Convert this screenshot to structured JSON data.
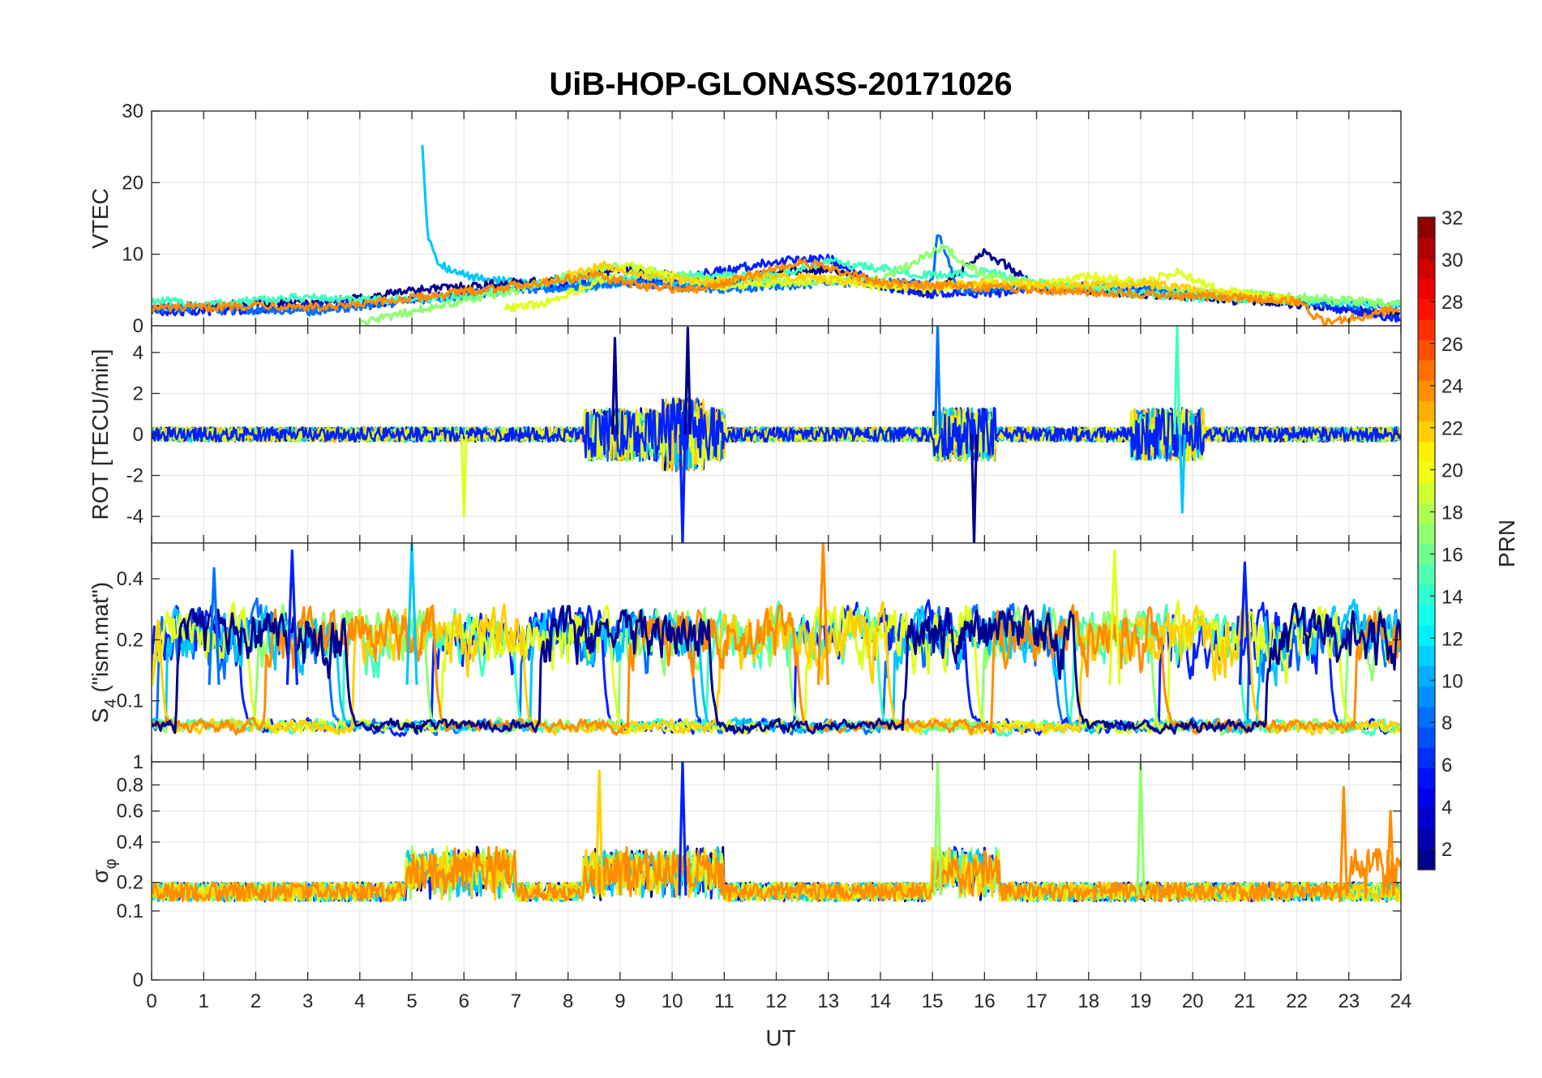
{
  "chart_data": {
    "type": "line",
    "title": "UiB-HOP-GLONASS-20171026",
    "xlabel": "UT",
    "xlim": [
      0,
      24
    ],
    "x_ticks": [
      "0",
      "1",
      "2",
      "3",
      "4",
      "5",
      "6",
      "7",
      "8",
      "9",
      "10",
      "11",
      "12",
      "13",
      "14",
      "15",
      "16",
      "17",
      "18",
      "19",
      "20",
      "21",
      "22",
      "23",
      "24"
    ],
    "grid": true,
    "colorbar": {
      "label": "PRN",
      "colormap": "jet",
      "range": [
        1,
        32
      ],
      "ticks": [
        "2",
        "4",
        "6",
        "8",
        "10",
        "12",
        "14",
        "16",
        "18",
        "20",
        "22",
        "24",
        "26",
        "28",
        "30",
        "32"
      ]
    },
    "series_colors": {
      "prn1": "#00008f",
      "prn3": "#0020ff",
      "prn6": "#0070ff",
      "prn10": "#00c8ff",
      "prn13": "#40ffbf",
      "prn16": "#8fff70",
      "prn19": "#e0ff20",
      "prn21": "#ffd000",
      "prn23": "#ff8c00"
    },
    "panels": [
      {
        "name": "vtec",
        "ylabel": "VTEC",
        "ylim": [
          0,
          30
        ],
        "y_ticks": [
          "0",
          "10",
          "20",
          "30"
        ],
        "series": [
          {
            "color_key": "prn10",
            "x": [
              5.2,
              5.3,
              5.5,
              5.8,
              6.2,
              6.8,
              7.5,
              8.0,
              8.5,
              9.0,
              9.6,
              10.2,
              10.8,
              11.4,
              12.0
            ],
            "y": [
              25.5,
              13,
              9,
              7.5,
              6.8,
              6.2,
              5.5,
              5.2,
              5.5,
              6,
              6.5,
              6,
              5.5,
              6,
              6.5
            ]
          },
          {
            "color_key": "prn1",
            "x": [
              0,
              1,
              2,
              3,
              4,
              5,
              6,
              7,
              8,
              9,
              10,
              11,
              12,
              13,
              14,
              15,
              16,
              17,
              18,
              19,
              20,
              21,
              22,
              23,
              24
            ],
            "y": [
              2.5,
              2.8,
              3,
              3.2,
              3.8,
              5,
              5.5,
              6,
              6.5,
              8,
              7,
              6,
              7.5,
              8,
              5.5,
              4.5,
              10.5,
              5.5,
              5,
              4.5,
              4,
              3.5,
              3,
              2.5,
              1.5
            ]
          },
          {
            "color_key": "prn3",
            "x": [
              0,
              2,
              4,
              6,
              8,
              10,
              12,
              13,
              14,
              15,
              16,
              17,
              18,
              19,
              20,
              21,
              22,
              23,
              24
            ],
            "y": [
              2,
              2.2,
              3,
              4.5,
              6,
              6.5,
              9,
              9.5,
              5.5,
              4.5,
              4.5,
              5,
              5.5,
              5,
              4.5,
              4,
              3.5,
              2,
              1
            ]
          },
          {
            "color_key": "prn6",
            "x": [
              0,
              3,
              5,
              7,
              9,
              11,
              13,
              15,
              15.1,
              15.5,
              17,
              19,
              21,
              23,
              24
            ],
            "y": [
              2.5,
              2,
              3.5,
              5,
              6,
              5,
              6,
              6,
              13,
              5,
              5.5,
              5,
              4,
              3,
              2.5
            ]
          },
          {
            "color_key": "prn13",
            "x": [
              0,
              1,
              2,
              3,
              4,
              6,
              8,
              10,
              12,
              13,
              14,
              15,
              16,
              17,
              18,
              20,
              22,
              24
            ],
            "y": [
              3.5,
              3,
              3.5,
              4,
              3.5,
              4,
              6.5,
              7,
              7,
              9,
              8,
              7,
              7.5,
              6,
              5,
              4,
              3.5,
              3
            ]
          },
          {
            "color_key": "prn16",
            "x": [
              4,
              5,
              6,
              7,
              8,
              9,
              10,
              12,
              14,
              15.2,
              16,
              17,
              18,
              19,
              20,
              22,
              24
            ],
            "y": [
              0.3,
              2,
              3.5,
              5,
              7,
              8.5,
              7,
              6,
              6.5,
              11,
              7,
              6,
              5.5,
              6,
              5,
              4,
              3
            ]
          },
          {
            "color_key": "prn19",
            "x": [
              6.8,
              7.5,
              8.5,
              9.2,
              10,
              11,
              12,
              13,
              14,
              15,
              16,
              17,
              18,
              19,
              19.7,
              20.5,
              22
            ],
            "y": [
              2.5,
              3,
              6,
              8.5,
              7,
              5.5,
              6,
              6.5,
              5.5,
              5,
              6,
              5.5,
              7,
              6,
              7.5,
              5,
              3.5
            ]
          },
          {
            "color_key": "prn21",
            "x": [
              8,
              8.7,
              9.5,
              10.5,
              12,
              13,
              14.5,
              16,
              17.5,
              19,
              20,
              21,
              22
            ],
            "y": [
              7,
              8.5,
              7,
              6,
              7,
              6.5,
              5.5,
              6,
              5.5,
              6,
              5,
              4,
              3.5
            ]
          },
          {
            "color_key": "prn23",
            "x": [
              0,
              1,
              2,
              3.5,
              8.5,
              9.5,
              10.5,
              11.5,
              12.5,
              13,
              14,
              22,
              22.5,
              23,
              24
            ],
            "y": [
              2.5,
              2.5,
              3,
              2.5,
              7,
              5.5,
              5,
              7,
              9,
              8,
              6,
              3.5,
              0.5,
              1,
              2.5
            ]
          }
        ]
      },
      {
        "name": "rot",
        "ylabel": "ROT [TECU/min]",
        "ylim": [
          -5.3,
          5.3
        ],
        "y_ticks": [
          "-4",
          "-2",
          "0",
          "2",
          "4"
        ],
        "spikes": [
          {
            "color_key": "prn1",
            "x": 8.9,
            "y": 4.7
          },
          {
            "color_key": "prn3",
            "x": 10.2,
            "y": -5.3
          },
          {
            "color_key": "prn1",
            "x": 10.3,
            "y": 5.2
          },
          {
            "color_key": "prn19",
            "x": 6.0,
            "y": -4.0
          },
          {
            "color_key": "prn6",
            "x": 15.1,
            "y": 5.3
          },
          {
            "color_key": "prn1",
            "x": 15.8,
            "y": -5.3
          },
          {
            "color_key": "prn13",
            "x": 19.7,
            "y": 5.3
          },
          {
            "color_key": "prn10",
            "x": 19.8,
            "y": -3.8
          }
        ]
      },
      {
        "name": "s4",
        "ylabel": "S4 (\"ism.mat\")",
        "ylabel_main": "S",
        "ylabel_sub": "4",
        "ylabel_rest": " (\"ism.mat\")",
        "ylim": [
          0.05,
          0.6
        ],
        "y_scale": "log",
        "y_ticks": [
          "0.1",
          "0.2",
          "0.4"
        ],
        "peaks": [
          {
            "color_key": "prn6",
            "x": 1.2,
            "y": 0.45
          },
          {
            "color_key": "prn3",
            "x": 2.7,
            "y": 0.55
          },
          {
            "color_key": "prn10",
            "x": 5.0,
            "y": 0.6
          },
          {
            "color_key": "prn23",
            "x": 12.9,
            "y": 0.6
          },
          {
            "color_key": "prn19",
            "x": 18.5,
            "y": 0.55
          },
          {
            "color_key": "prn3",
            "x": 21.0,
            "y": 0.48
          }
        ]
      },
      {
        "name": "sigma_phi",
        "ylabel": "σφ",
        "ylabel_main": "σ",
        "ylabel_sub": "φ",
        "ylim": [
          0,
          1
        ],
        "y_scale": "power",
        "y_ticks": [
          "0",
          "0.1",
          "0.2",
          "0.4",
          "0.6",
          "0.8",
          "1"
        ],
        "peaks": [
          {
            "color_key": "prn21",
            "x": 8.6,
            "y": 0.92
          },
          {
            "color_key": "prn3",
            "x": 10.2,
            "y": 1.0
          },
          {
            "color_key": "prn16",
            "x": 15.1,
            "y": 1.0
          },
          {
            "color_key": "prn16",
            "x": 19.0,
            "y": 1.0
          },
          {
            "color_key": "prn23",
            "x": 22.9,
            "y": 0.78
          },
          {
            "color_key": "prn23",
            "x": 23.8,
            "y": 0.6
          }
        ]
      }
    ]
  }
}
